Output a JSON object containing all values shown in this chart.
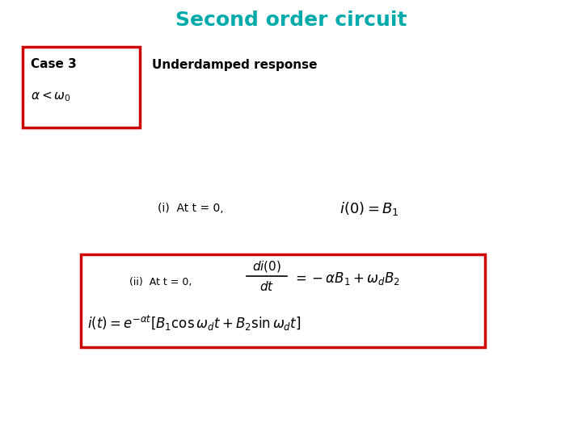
{
  "title": "Second order circuit",
  "title_color": "#00AAAA",
  "title_fontsize": 18,
  "bg_color": "#ffffff",
  "case3_label": "Case 3",
  "underdamped_label": "Underdamped response",
  "alpha_condition": "$\\alpha < \\omega_0$",
  "condition_i_text": "(i)  At t = 0,",
  "condition_i_eq": "$i(0) = B_1$",
  "condition_ii_label": "(ii)  At t = 0,",
  "condition_ii_frac": "$\\frac{di(0)}{dt}$",
  "condition_ii_eq": "$= -\\alpha B_1 + \\omega_d B_2$",
  "general_solution": "$i(t) = e^{-\\alpha t}[B_1 \\cos \\omega_d t + B_2 \\sin \\omega_d t]$",
  "box1_color": "#cc0000",
  "box2_color": "#cc0000",
  "fig_width": 7.2,
  "fig_height": 5.4,
  "dpi": 100
}
